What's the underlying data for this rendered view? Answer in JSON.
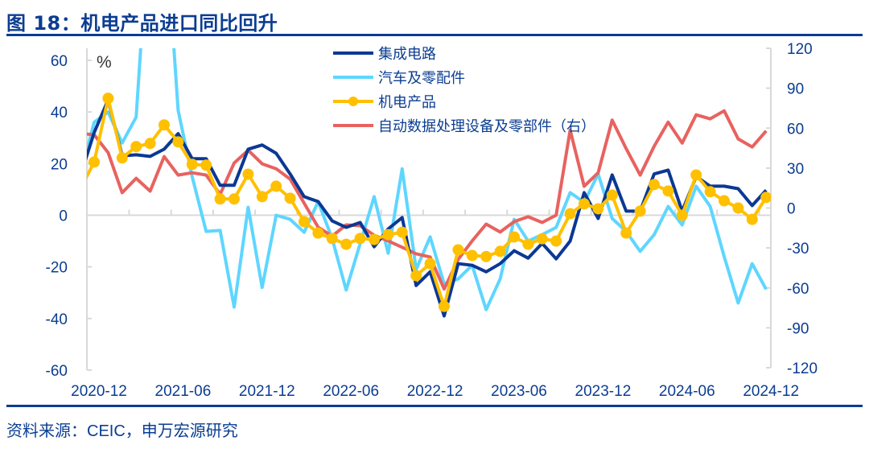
{
  "title": "图 18：机电产品进口同比回升",
  "source": "资料来源：CEIC，申万宏源研究",
  "chart_data": {
    "type": "line",
    "title": "图 18：机电产品进口同比回升",
    "unit_label": "%",
    "x_start_month": "2020-11",
    "x_tick_labels": [
      "2020-12",
      "2021-06",
      "2021-12",
      "2022-06",
      "2022-12",
      "2023-06",
      "2023-12",
      "2024-06",
      "2024-12"
    ],
    "left_axis": {
      "min": -60,
      "max": 60,
      "ticks": [
        60,
        40,
        20,
        0,
        -20,
        -40,
        -60
      ]
    },
    "right_axis": {
      "min": -120,
      "max": 120,
      "ticks": [
        120,
        90,
        60,
        30,
        0,
        -30,
        -60,
        -90,
        -120
      ]
    },
    "grid": false,
    "legend_position": "top-center",
    "series": [
      {
        "name": "集成电路",
        "axis": "left",
        "color": "#0b3894",
        "markers": false,
        "values": [
          15,
          32,
          44.7,
          23,
          23.4,
          22.8,
          25.6,
          31.6,
          21.9,
          21.9,
          11.6,
          11.6,
          25.6,
          27.2,
          24,
          16,
          7.2,
          5.3,
          -2.2,
          -4.7,
          -2.8,
          -12.2,
          -5.3,
          -0.9,
          -27.2,
          -21.9,
          -39,
          -18.75,
          -19.4,
          -21.9,
          -18.75,
          -13.75,
          -16.6,
          -10.9,
          -16.9,
          -10,
          8.75,
          -1.25,
          15.6,
          1.6,
          1.6,
          16,
          17.5,
          1.6,
          15,
          11.25,
          11.25,
          10.3,
          3.75,
          9.7
        ]
      },
      {
        "name": "汽车及零配件",
        "axis": "left",
        "color": "#5ed6ff",
        "markers": false,
        "values": [
          15,
          36,
          40,
          28,
          38,
          120,
          120,
          40.6,
          15,
          -6.25,
          -5.9,
          -35.6,
          3.1,
          -28,
          0,
          -1.6,
          -6.6,
          5.3,
          -9,
          -29,
          -11,
          7.2,
          -14.7,
          18,
          -21,
          -8.4,
          -26.6,
          -24.7,
          -19.4,
          -36.6,
          -24.7,
          -1.6,
          -10,
          -7.5,
          -4.7,
          8.75,
          5,
          16,
          -1.25,
          -6.25,
          -14,
          -7.5,
          3.4,
          -3.75,
          11.25,
          3.4,
          -16,
          -34,
          -18.75,
          -28.75
        ]
      },
      {
        "name": "机电产品",
        "axis": "left",
        "color": "#ffc000",
        "markers": true,
        "values": [
          10,
          20.6,
          45.3,
          22.2,
          26.6,
          27.8,
          35,
          28.4,
          19.7,
          19.4,
          6.3,
          6.3,
          15.9,
          7.2,
          11.25,
          6.6,
          -2.5,
          -6.9,
          -9,
          -11.25,
          -9,
          -9.4,
          -7.5,
          -6.6,
          -23.4,
          -18.75,
          -35.3,
          -13.4,
          -15.6,
          -16,
          -14,
          -8.4,
          -11.25,
          -9.1,
          -10,
          0.6,
          4.4,
          2.5,
          7.8,
          -6.9,
          1.6,
          11.9,
          9.4,
          0,
          15.6,
          9.1,
          5.6,
          2.8,
          -1.6,
          6.9
        ]
      },
      {
        "name": "自动数据处理设备及零部件（右）",
        "axis": "right",
        "color": "#e8625f",
        "markers": false,
        "values": [
          56,
          55,
          41.6,
          11.5,
          22.3,
          12.7,
          38.6,
          24.7,
          26.5,
          24.7,
          10.2,
          33.8,
          43.4,
          33.2,
          29.5,
          21.7,
          3.6,
          -14.5,
          -21.1,
          -12.7,
          -13.3,
          -20.5,
          -24.7,
          -29.5,
          -34.4,
          -36.8,
          -60.9,
          -38.6,
          -24.7,
          -12.1,
          -18.1,
          -10.2,
          -6.6,
          -10.9,
          -5.4,
          58.5,
          16.3,
          26.5,
          66,
          44.6,
          24.7,
          46.4,
          64.5,
          48.8,
          70,
          67,
          73,
          51.9,
          45.8,
          57.9
        ]
      }
    ]
  }
}
